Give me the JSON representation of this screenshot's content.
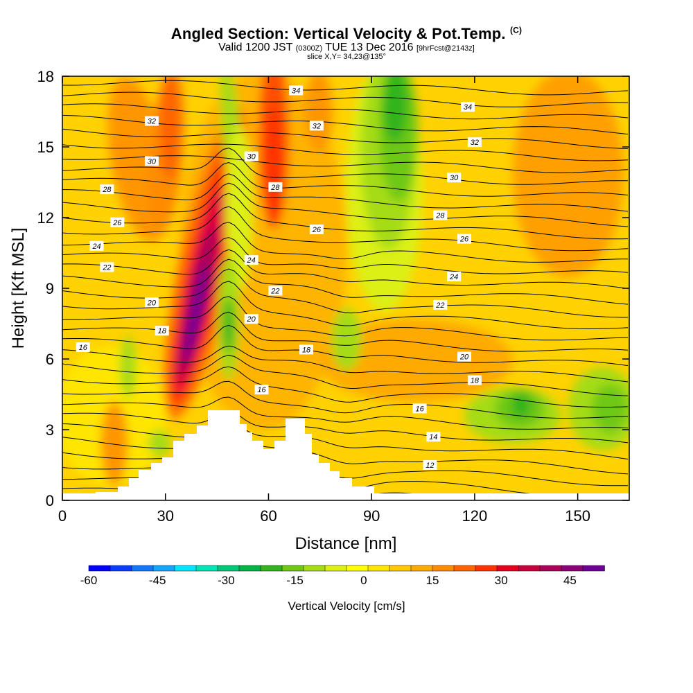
{
  "chart_data": {
    "type": "heatmap",
    "title": "Angled Section: Vertical Velocity & Pot.Temp.",
    "title_mark": "(C)",
    "subtitle": {
      "valid": "Valid 1200 JST",
      "utc": "(0300Z)",
      "date": "TUE 13 Dec 2016",
      "fcst": "[9hrFcst@2143z]"
    },
    "slice_text": "slice X,Y= 34,23@135°",
    "xlabel": "Distance [nm]",
    "ylabel": "Height [Kft MSL]",
    "xlim": [
      0,
      165
    ],
    "ylim": [
      0,
      18
    ],
    "xticks": [
      0,
      30,
      60,
      90,
      120,
      150
    ],
    "yticks": [
      0,
      3,
      6,
      9,
      12,
      15,
      18
    ],
    "colorbar": {
      "label": "Vertical Velocity [cm/s]",
      "ticks": [
        -60,
        -45,
        -30,
        -15,
        0,
        15,
        30,
        45
      ],
      "colors": [
        "#0000ff",
        "#0a3cff",
        "#1478ff",
        "#14a5ff",
        "#00e6ff",
        "#00e6b4",
        "#00c878",
        "#00b446",
        "#32b41e",
        "#6ec814",
        "#a5dc14",
        "#dcf014",
        "#ffff00",
        "#ffe600",
        "#ffc800",
        "#ffaa00",
        "#ff8c00",
        "#ff6400",
        "#ff3200",
        "#e6001e",
        "#c8003c",
        "#aa005a",
        "#8c0078",
        "#6e0096"
      ]
    },
    "contour_labels": [
      {
        "value": "34",
        "x": 68,
        "y": 17.4
      },
      {
        "value": "34",
        "x": 118,
        "y": 16.7
      },
      {
        "value": "32",
        "x": 26,
        "y": 16.1
      },
      {
        "value": "32",
        "x": 74,
        "y": 15.9
      },
      {
        "value": "32",
        "x": 120,
        "y": 15.2
      },
      {
        "value": "30",
        "x": 26,
        "y": 14.4
      },
      {
        "value": "30",
        "x": 55,
        "y": 14.6
      },
      {
        "value": "30",
        "x": 114,
        "y": 13.7
      },
      {
        "value": "28",
        "x": 13,
        "y": 13.2
      },
      {
        "value": "28",
        "x": 62,
        "y": 13.3
      },
      {
        "value": "28",
        "x": 110,
        "y": 12.1
      },
      {
        "value": "26",
        "x": 16,
        "y": 11.8
      },
      {
        "value": "26",
        "x": 74,
        "y": 11.5
      },
      {
        "value": "26",
        "x": 117,
        "y": 11.1
      },
      {
        "value": "24",
        "x": 10,
        "y": 10.8
      },
      {
        "value": "24",
        "x": 55,
        "y": 10.2
      },
      {
        "value": "24",
        "x": 114,
        "y": 9.5
      },
      {
        "value": "22",
        "x": 13,
        "y": 9.9
      },
      {
        "value": "22",
        "x": 62,
        "y": 8.9
      },
      {
        "value": "22",
        "x": 110,
        "y": 8.3
      },
      {
        "value": "20",
        "x": 26,
        "y": 8.4
      },
      {
        "value": "20",
        "x": 55,
        "y": 7.7
      },
      {
        "value": "20",
        "x": 117,
        "y": 6.1
      },
      {
        "value": "18",
        "x": 29,
        "y": 7.2
      },
      {
        "value": "18",
        "x": 71,
        "y": 6.4
      },
      {
        "value": "18",
        "x": 120,
        "y": 5.1
      },
      {
        "value": "16",
        "x": 6,
        "y": 6.5
      },
      {
        "value": "16",
        "x": 58,
        "y": 4.7
      },
      {
        "value": "16",
        "x": 104,
        "y": 3.9
      },
      {
        "value": "14",
        "x": 108,
        "y": 2.7
      },
      {
        "value": "12",
        "x": 107,
        "y": 1.5
      }
    ]
  }
}
